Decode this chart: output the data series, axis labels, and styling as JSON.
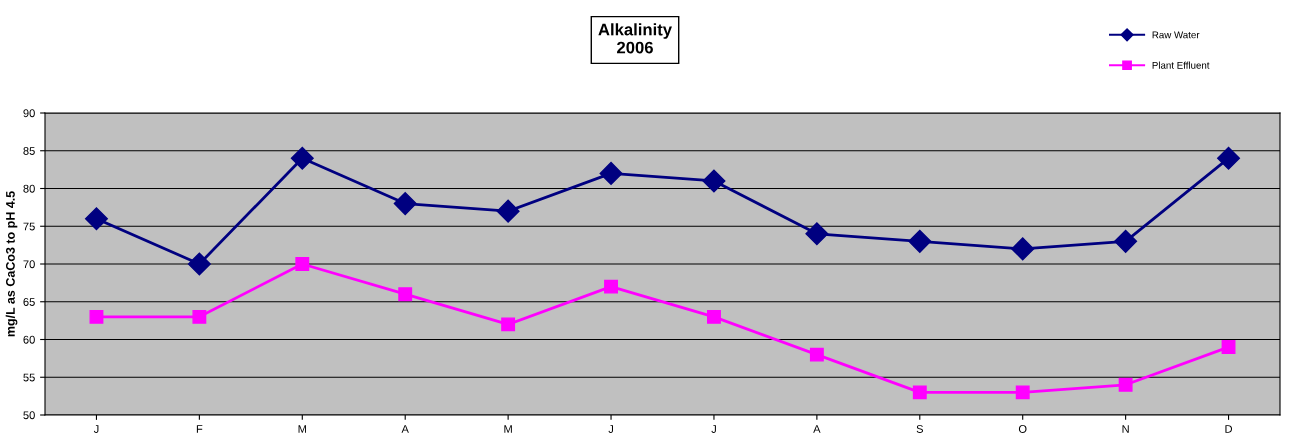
{
  "chart_data": {
    "type": "line",
    "title": "Alkalinity\n2006",
    "ylabel": "mg/L as CaCo3 to pH 4.5",
    "categories": [
      "J",
      "F",
      "M",
      "A",
      "M",
      "J",
      "J",
      "A",
      "S",
      "O",
      "N",
      "D"
    ],
    "series": [
      {
        "name": "Raw Water",
        "color": "#000080",
        "marker": "diamond",
        "values": [
          76,
          70,
          84,
          78,
          77,
          82,
          81,
          74,
          73,
          72,
          73,
          84
        ]
      },
      {
        "name": "Plant Effluent",
        "color": "#ff00ff",
        "marker": "square",
        "values": [
          63,
          63,
          70,
          66,
          62,
          67,
          63,
          58,
          53,
          53,
          54,
          59
        ]
      }
    ],
    "ylim": [
      50,
      90
    ],
    "yticks": [
      50,
      55,
      60,
      65,
      70,
      75,
      80,
      85,
      90
    ],
    "grid": "y",
    "legend": "top right",
    "line_style": "solid"
  }
}
